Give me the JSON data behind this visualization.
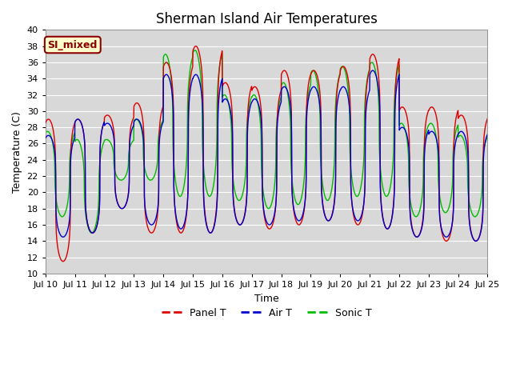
{
  "title": "Sherman Island Air Temperatures",
  "xlabel": "Time",
  "ylabel": "Temperature (C)",
  "ylim": [
    10,
    40
  ],
  "yticks": [
    10,
    12,
    14,
    16,
    18,
    20,
    22,
    24,
    26,
    28,
    30,
    32,
    34,
    36,
    38,
    40
  ],
  "xtick_labels": [
    "Jul 10",
    "Jul 11",
    "Jul 12",
    "Jul 13",
    "Jul 14",
    "Jul 15",
    "Jul 16",
    "Jul 17",
    "Jul 18",
    "Jul 19",
    "Jul 20",
    "Jul 21",
    "Jul 22",
    "Jul 23",
    "Jul 24",
    "Jul 25"
  ],
  "annotation_text": "SI_mixed",
  "annotation_bg": "#ffffcc",
  "annotation_border": "#8B0000",
  "annotation_text_color": "#8B0000",
  "panel_color": "#dd0000",
  "air_color": "#0000cc",
  "sonic_color": "#00bb00",
  "fig_bg": "#ffffff",
  "plot_bg": "#d8d8d8",
  "grid_color": "#ffffff",
  "title_fontsize": 12,
  "axis_label_fontsize": 9,
  "tick_fontsize": 8,
  "legend_fontsize": 9,
  "panel_peaks": [
    11.5,
    29.0,
    15.0,
    29.0,
    18.0,
    29.5,
    15.0,
    31.0,
    15.0,
    36.0,
    15.0,
    38.0,
    16.0,
    33.5,
    15.5,
    33.0,
    16.0,
    35.0,
    16.5,
    35.0,
    16.0,
    35.5,
    15.5,
    37.0,
    14.5,
    30.5,
    14.0,
    30.5,
    14.0,
    29.5
  ],
  "air_peaks": [
    14.5,
    27.0,
    15.0,
    29.0,
    18.0,
    28.5,
    16.0,
    29.0,
    15.5,
    34.5,
    15.0,
    34.5,
    16.0,
    31.5,
    16.0,
    31.5,
    16.5,
    33.0,
    16.5,
    33.0,
    16.5,
    33.0,
    15.5,
    35.0,
    14.5,
    28.0,
    14.5,
    27.5,
    14.0,
    27.5
  ],
  "sonic_peaks": [
    17.0,
    27.5,
    15.0,
    26.5,
    21.5,
    26.5,
    21.5,
    29.0,
    19.5,
    37.0,
    19.5,
    37.5,
    19.0,
    32.0,
    18.0,
    32.0,
    18.5,
    33.5,
    19.0,
    35.0,
    19.5,
    35.5,
    19.5,
    36.0,
    17.0,
    28.5,
    17.5,
    28.5,
    17.0,
    27.0
  ],
  "peak_phase": 0.6,
  "sharpness": 4.0
}
